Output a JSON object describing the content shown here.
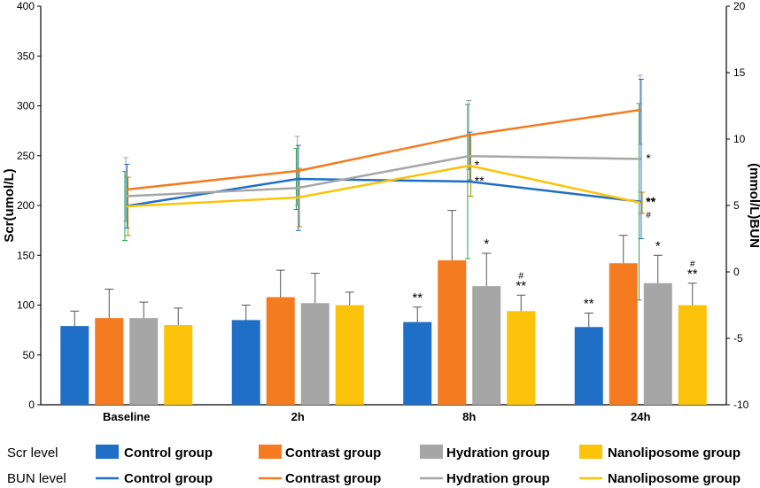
{
  "chart_data": {
    "type": "bar+line",
    "categories": [
      "Baseline",
      "2h",
      "8h",
      "24h"
    ],
    "ylabel_left": "Scr(umol/L)",
    "ylabel_right": "(mmol/L)BUN",
    "ylim_left": [
      0,
      400
    ],
    "ylim_right": [
      -10,
      20
    ],
    "yticks_left": [
      0,
      50,
      100,
      150,
      200,
      250,
      300,
      350,
      400
    ],
    "yticks_right": [
      -10,
      -5,
      0,
      5,
      10,
      15,
      20
    ],
    "bar_series": [
      {
        "name": "Control group",
        "color": "#1f6fc6",
        "values": [
          79,
          85,
          83,
          78
        ],
        "errors": [
          15,
          15,
          15,
          14
        ]
      },
      {
        "name": "Contrast group",
        "color": "#f47b20",
        "values": [
          87,
          108,
          145,
          142
        ],
        "errors": [
          29,
          27,
          50,
          28
        ]
      },
      {
        "name": "Hydration group",
        "color": "#a6a6a6",
        "values": [
          87,
          102,
          119,
          122
        ],
        "errors": [
          16,
          30,
          33,
          28
        ]
      },
      {
        "name": "Nanoliposome group",
        "color": "#fbc30a",
        "values": [
          80,
          100,
          94,
          100
        ],
        "errors": [
          17,
          13,
          16,
          22
        ]
      }
    ],
    "bar_annotations": [
      {
        "series": 0,
        "category": 2,
        "lines": [
          "**"
        ]
      },
      {
        "series": 2,
        "category": 2,
        "lines": [
          "*"
        ]
      },
      {
        "series": 3,
        "category": 2,
        "lines": [
          "#",
          "**"
        ]
      },
      {
        "series": 0,
        "category": 3,
        "lines": [
          "**"
        ]
      },
      {
        "series": 2,
        "category": 3,
        "lines": [
          "*"
        ]
      },
      {
        "series": 3,
        "category": 3,
        "lines": [
          "#",
          "**"
        ]
      }
    ],
    "line_series": [
      {
        "name": "Control group",
        "color": "#1f6fc6",
        "values": [
          4.96,
          7.0,
          6.8,
          5.28
        ],
        "errors": [
          2.6,
          2.3,
          5.8,
          7.4
        ]
      },
      {
        "name": "Contrast group",
        "color": "#f47b20",
        "values": [
          6.2,
          7.6,
          10.3,
          12.2
        ],
        "errors": [
          2.4,
          2.6,
          2.6,
          2.6
        ]
      },
      {
        "name": "Hydration group",
        "color": "#a6a6a6",
        "values": [
          5.7,
          6.32,
          8.72,
          8.5
        ],
        "errors": [
          2.4,
          3.2,
          1.8,
          6.0
        ]
      },
      {
        "name": "Nanoliposome group",
        "color": "#fbc30a",
        "values": [
          4.93,
          5.6,
          8.0,
          5.2
        ],
        "errors": [
          2.2,
          2.2,
          2.3,
          0.8
        ]
      }
    ],
    "error_bar_colors": [
      "#22a84a",
      "#a0a0a0",
      "#1f6fc6",
      "#b8860b"
    ],
    "line_annotations": [
      {
        "series": 3,
        "category": 2,
        "lines": [
          "*"
        ]
      },
      {
        "series": 0,
        "category": 2,
        "lines": [
          "**"
        ]
      },
      {
        "series": 2,
        "category": 3,
        "lines": [
          "*"
        ]
      },
      {
        "series": 0,
        "category": 3,
        "lines": [
          "**"
        ]
      },
      {
        "series": 3,
        "category": 3,
        "lines": [
          "**",
          "#"
        ]
      }
    ]
  },
  "legend": {
    "bar_row_label": "Scr level",
    "line_row_label": "BUN level",
    "entries": [
      "Control group",
      "Contrast group",
      "Hydration group",
      "Nanoliposome group"
    ],
    "colors": [
      "#1f6fc6",
      "#f47b20",
      "#a6a6a6",
      "#fbc30a"
    ]
  }
}
